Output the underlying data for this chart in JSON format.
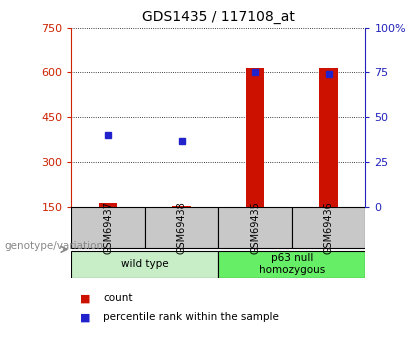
{
  "title": "GDS1435 / 117108_at",
  "samples": [
    "GSM69437",
    "GSM69438",
    "GSM69435",
    "GSM69436"
  ],
  "counts": [
    165,
    155,
    615,
    615
  ],
  "percentiles": [
    40,
    37,
    75,
    74
  ],
  "ylim_left": [
    150,
    750
  ],
  "ylim_right": [
    0,
    100
  ],
  "yticks_left": [
    150,
    300,
    450,
    600,
    750
  ],
  "yticks_right": [
    0,
    25,
    50,
    75,
    100
  ],
  "groups": [
    {
      "label": "wild type",
      "indices": [
        0,
        1
      ],
      "color": "#c8eec8"
    },
    {
      "label": "p63 null\nhomozygous",
      "indices": [
        2,
        3
      ],
      "color": "#66ee66"
    }
  ],
  "bar_color": "#cc1100",
  "dot_color": "#2222cc",
  "bar_width": 0.25,
  "background_color": "#ffffff",
  "left_axis_color": "#cc2200",
  "right_axis_color": "#2222bb",
  "sample_box_color": "#c8c8c8",
  "legend_items": [
    {
      "color": "#cc1100",
      "label": "count"
    },
    {
      "color": "#2222cc",
      "label": "percentile rank within the sample"
    }
  ],
  "xlabel_group": "genotype/variation"
}
